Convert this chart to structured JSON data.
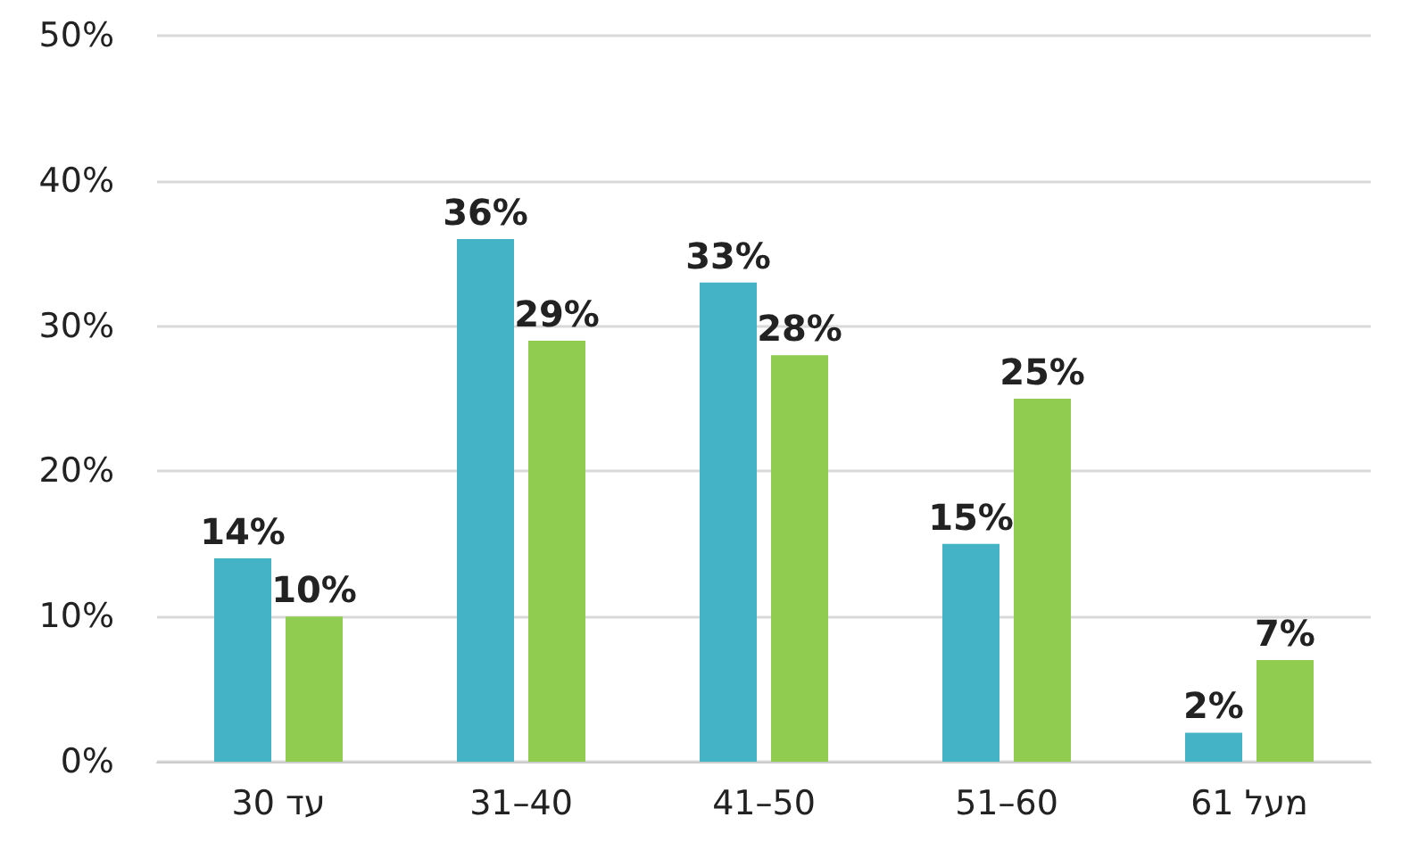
{
  "chart_data": {
    "type": "bar",
    "categories": [
      "עד 30",
      "31–40",
      "41–50",
      "51–60",
      "מעל 61"
    ],
    "series": [
      {
        "color": "#44b3c6",
        "values": [
          14,
          36,
          33,
          15,
          2
        ],
        "value_labels": [
          "14%",
          "36%",
          "33%",
          "15%",
          "2%"
        ]
      },
      {
        "color": "#8fcc50",
        "values": [
          10,
          29,
          28,
          25,
          7
        ],
        "value_labels": [
          "10%",
          "29%",
          "28%",
          "25%",
          "7%"
        ]
      }
    ],
    "ylim": [
      0,
      50
    ],
    "yticks": [
      {
        "value": 0,
        "label": "0%"
      },
      {
        "value": 10,
        "label": "10%"
      },
      {
        "value": 20,
        "label": "20%"
      },
      {
        "value": 30,
        "label": "30%"
      },
      {
        "value": 40,
        "label": "40%"
      },
      {
        "value": 50,
        "label": "50%"
      }
    ],
    "grid": "y"
  }
}
